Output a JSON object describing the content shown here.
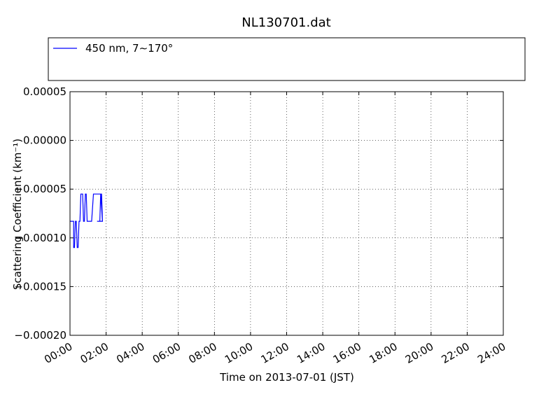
{
  "chart_data": {
    "type": "line",
    "title": "NL130701.dat",
    "xlabel": "Time on 2013-07-01 (JST)",
    "ylabel": "Scattering Coefficient (km⁻¹)",
    "xlim": [
      0,
      24
    ],
    "ylim": [
      -0.0002,
      5e-05
    ],
    "x_unit": "hours",
    "x_ticks": [
      0,
      2,
      4,
      6,
      8,
      10,
      12,
      14,
      16,
      18,
      20,
      22,
      24
    ],
    "x_tick_labels": [
      "00:00",
      "02:00",
      "04:00",
      "06:00",
      "08:00",
      "10:00",
      "12:00",
      "14:00",
      "16:00",
      "18:00",
      "20:00",
      "22:00",
      "24:00"
    ],
    "y_ticks": [
      5e-05,
      0.0,
      -5e-05,
      -0.0001,
      -0.00015,
      -0.0002
    ],
    "y_tick_labels": [
      "0.00005",
      "0.00000",
      "−0.00005",
      "−0.00010",
      "−0.00015",
      "−0.00020"
    ],
    "grid": true,
    "legend_placement": "top, above plot, 3 columns",
    "series": [
      {
        "name": "450 nm, 7∼170°",
        "color": "#0000ff",
        "style": "solid",
        "points": [
          [
            0,
            -8.3e-05
          ],
          [
            0.2,
            -8.3e-05
          ],
          [
            0.2,
            -0.00011
          ],
          [
            0.25,
            -0.00011
          ],
          [
            0.3,
            -8.3e-05
          ],
          [
            0.35,
            -8.3e-05
          ],
          [
            0.4,
            -0.00011
          ],
          [
            0.45,
            -0.00011
          ],
          [
            0.5,
            -8.3e-05
          ],
          [
            0.55,
            -8.3e-05
          ],
          [
            0.6,
            -5.5e-05
          ],
          [
            0.7,
            -5.5e-05
          ],
          [
            0.75,
            -8.3e-05
          ],
          [
            0.8,
            -8.3e-05
          ],
          [
            0.85,
            -5.5e-05
          ],
          [
            0.9,
            -5.5e-05
          ],
          [
            0.95,
            -8.3e-05
          ],
          [
            1.2,
            -8.3e-05
          ],
          [
            1.3,
            -5.5e-05
          ],
          [
            1.7,
            -5.5e-05
          ],
          [
            1.8,
            -8.3e-05
          ],
          [
            1.6,
            -8.3e-05
          ],
          [
            1.65,
            -8.3e-05
          ],
          [
            1.7,
            -5.5e-05
          ],
          [
            1.75,
            -5.5e-05
          ],
          [
            1.8,
            -8.3e-05
          ],
          [
            1.7,
            -8.3e-05
          ],
          [
            1.8,
            -8.3e-05
          ],
          [
            1.7,
            -8.3e-05
          ],
          [
            1.5,
            -8.3e-05
          ],
          [
            1.6,
            -8.3e-05
          ],
          [
            1.7,
            -8.3e-05
          ],
          [
            1.8,
            -8.3e-05
          ],
          [
            1.8,
            -8.3e-05
          ],
          [
            1.8,
            -8.3e-05
          ],
          [
            1.8,
            -8.3e-05
          ],
          [
            1.8,
            -8.3e-05
          ],
          [
            1.8,
            -8.3e-05
          ],
          [
            1.8,
            -8.3e-05
          ],
          [
            1.8,
            -8.3e-05
          ],
          [
            1.8,
            -8.3e-05
          ],
          [
            1.8,
            -8.3e-05
          ],
          [
            1.8,
            -8.3e-05
          ],
          [
            1.8,
            -8.3e-05
          ],
          [
            1.8,
            -8.3e-05
          ],
          [
            1.8,
            -8.3e-05
          ],
          [
            1.8,
            -8.3e-05
          ],
          [
            1.8,
            -8.3e-05
          ],
          [
            1.8,
            -8.3e-05
          ],
          [
            1.8,
            -8.3e-05
          ],
          [
            1.8,
            -8.3e-05
          ],
          [
            1.8,
            -8.3e-05
          ],
          [
            1.8,
            -8.3e-05
          ],
          [
            1.8,
            -8.3e-05
          ],
          [
            1.8,
            -8.3e-05
          ],
          [
            1.8,
            -8.3e-05
          ],
          [
            1.8,
            -8.3e-05
          ],
          [
            1.8,
            -8.3e-05
          ],
          [
            1.8,
            -8.3e-05
          ],
          [
            1.8,
            -8.3e-05
          ],
          [
            1.8,
            -8.3e-05
          ],
          [
            1.8,
            -8.3e-05
          ],
          [
            1.8,
            -8.3e-05
          ],
          [
            1.8,
            -8.3e-05
          ],
          [
            1.8,
            -8.3e-05
          ],
          [
            1.8,
            -8.3e-05
          ],
          [
            1.8,
            -8.3e-05
          ],
          [
            1.8,
            -8.3e-05
          ],
          [
            1.8,
            -8.3e-05
          ],
          [
            1.8,
            -8.3e-05
          ],
          [
            1.8,
            -8.3e-05
          ],
          [
            1.8,
            -8.3e-05
          ],
          [
            1.8,
            -8.3e-05
          ],
          [
            1.8,
            -8.3e-05
          ],
          [
            1.8,
            -8.3e-05
          ],
          [
            1.8,
            -8.3e-05
          ],
          [
            1.8,
            -8.3e-05
          ],
          [
            1.8,
            -8.3e-05
          ],
          [
            1.8,
            -8.3e-05
          ],
          [
            1.8,
            -8.3e-05
          ],
          [
            1.8,
            -8.3e-05
          ],
          [
            1.8,
            -8.3e-05
          ],
          [
            1.8,
            -8.3e-05
          ],
          [
            1.8,
            -8.3e-05
          ],
          [
            1.8,
            -8.3e-05
          ],
          [
            1.8,
            -8.3e-05
          ],
          [
            1.8,
            -8.3e-05
          ],
          [
            1.8,
            -8.3e-05
          ],
          [
            1.8,
            -8.3e-05
          ],
          [
            1.8,
            -8.3e-05
          ],
          [
            1.8,
            -8.3e-05
          ],
          [
            1.8,
            -8.3e-05
          ],
          [
            1.8,
            -8.3e-05
          ],
          [
            1.8,
            -8.3e-05
          ],
          [
            1.8,
            -8.3e-05
          ],
          [
            1.8,
            -8.3e-05
          ],
          [
            1.8,
            -8.3e-05
          ],
          [
            1.7,
            -8.3e-05
          ],
          [
            1.8,
            -8.3e-05
          ],
          [
            1.7,
            -8.3e-05
          ],
          [
            1.65,
            -8.3e-05
          ],
          [
            1.6,
            -8.3e-05
          ],
          [
            1.7,
            -8.3e-05
          ],
          [
            1.7,
            -8.3e-05
          ],
          [
            1.65,
            -8.3e-05
          ],
          [
            1.7,
            -8.3e-05
          ],
          [
            1.7,
            -8.3e-05
          ],
          [
            1.7,
            -8.3e-05
          ],
          [
            1.7,
            -8.3e-05
          ],
          [
            1.7,
            -8.3e-05
          ],
          [
            1.7,
            -8.3e-05
          ],
          [
            1.7,
            -8.3e-05
          ],
          [
            1.7,
            -8.3e-05
          ],
          [
            1.7,
            -8.3e-05
          ],
          [
            1.8,
            -8.3e-05
          ],
          [
            1.7,
            -8.3e-05
          ],
          [
            1.8,
            -8.3e-05
          ],
          [
            1.8,
            -8.3e-05
          ],
          [
            1.8,
            -8.3e-05
          ],
          [
            1.75,
            -8.3e-05
          ],
          [
            1.75,
            -8.3e-05
          ],
          [
            1.75,
            -8.3e-05
          ],
          [
            1.75,
            -8.3e-05
          ],
          [
            1.75,
            -8.3e-05
          ],
          [
            1.75,
            -8.3e-05
          ],
          [
            1.75,
            -8.3e-05
          ],
          [
            1.75,
            -8.3e-05
          ],
          [
            1.75,
            -8.3e-05
          ],
          [
            1.75,
            -8.3e-05
          ],
          [
            1.75,
            -8.3e-05
          ],
          [
            1.75,
            -8.3e-05
          ],
          [
            1.75,
            -8.3e-05
          ],
          [
            1.75,
            -8.3e-05
          ],
          [
            1.75,
            -8.3e-05
          ],
          [
            1.75,
            -8.3e-05
          ],
          [
            1.75,
            -8.3e-05
          ],
          [
            1.75,
            -8.3e-05
          ],
          [
            1.75,
            -8.3e-05
          ],
          [
            1.75,
            -8.3e-05
          ],
          [
            1.75,
            -8.3e-05
          ],
          [
            1.75,
            -8.3e-05
          ],
          [
            1.75,
            -8.3e-05
          ],
          [
            1.75,
            -8.3e-05
          ],
          [
            1.75,
            -8.3e-05
          ],
          [
            1.75,
            -8.3e-05
          ],
          [
            1.75,
            -8.3e-05
          ],
          [
            1.75,
            -8.3e-05
          ],
          [
            1.75,
            -8.3e-05
          ],
          [
            1.75,
            -8.3e-05
          ],
          [
            1.75,
            -8.3e-05
          ],
          [
            1.75,
            -8.3e-05
          ],
          [
            1.75,
            -8.3e-05
          ],
          [
            1.75,
            -8.3e-05
          ],
          [
            1.75,
            -8.3e-05
          ],
          [
            1.75,
            -8.3e-05
          ],
          [
            1.75,
            -8.3e-05
          ],
          [
            1.75,
            -8.3e-05
          ],
          [
            1.75,
            -8.3e-05
          ],
          [
            1.75,
            -8.3e-05
          ],
          [
            1.75,
            -8.3e-05
          ],
          [
            1.75,
            -8.3e-05
          ],
          [
            1.75,
            -8.3e-05
          ],
          [
            1.75,
            -8.3e-05
          ],
          [
            1.75,
            -8.3e-05
          ],
          [
            1.75,
            -8.3e-05
          ],
          [
            1.75,
            -8.3e-05
          ],
          [
            1.75,
            -8.3e-05
          ],
          [
            1.75,
            -8.3e-05
          ],
          [
            1.75,
            -8.3e-05
          ],
          [
            1.75,
            -8.3e-05
          ],
          [
            1.75,
            -8.3e-05
          ],
          [
            1.75,
            -8.3e-05
          ],
          [
            1.75,
            -8.3e-05
          ],
          [
            1.75,
            -8.3e-05
          ],
          [
            1.75,
            -8.3e-05
          ],
          [
            1.75,
            -8.3e-05
          ],
          [
            1.75,
            -8.3e-05
          ],
          [
            1.75,
            -8.3e-05
          ],
          [
            1.75,
            -8.3e-05
          ],
          [
            1.75,
            -8.3e-05
          ],
          [
            1.75,
            -8.3e-05
          ],
          [
            1.75,
            -8.3e-05
          ],
          [
            1.75,
            -8.3e-05
          ],
          [
            1.75,
            -8.3e-05
          ],
          [
            1.75,
            -8.3e-05
          ],
          [
            1.75,
            -8.3e-05
          ],
          [
            1.75,
            -8.3e-05
          ],
          [
            1.75,
            -8.3e-05
          ],
          [
            1.75,
            -8.3e-05
          ],
          [
            1.75,
            -8.3e-05
          ],
          [
            1.75,
            -8.3e-05
          ],
          [
            1.75,
            -8.3e-05
          ],
          [
            1.75,
            -8.3e-05
          ],
          [
            1.75,
            -8.3e-05
          ],
          [
            1.75,
            -8.3e-05
          ],
          [
            1.75,
            -8.3e-05
          ],
          [
            1.75,
            -8.3e-05
          ],
          [
            1.75,
            -8.3e-05
          ],
          [
            1.75,
            -8.3e-05
          ],
          [
            1.75,
            -8.3e-05
          ],
          [
            1.75,
            -8.3e-05
          ],
          [
            1.75,
            -8.3e-05
          ],
          [
            1.75,
            -8.3e-05
          ],
          [
            1.75,
            -8.3e-05
          ],
          [
            1.75,
            -8.3e-05
          ],
          [
            1.75,
            -8.3e-05
          ],
          [
            1.75,
            -8.3e-05
          ],
          [
            1.75,
            -8.3e-05
          ],
          [
            1.75,
            -8.3e-05
          ],
          [
            1.75,
            -8.3e-05
          ],
          [
            1.75,
            -8.3e-05
          ],
          [
            1.75,
            -8.3e-05
          ],
          [
            1.75,
            -8.3e-05
          ],
          [
            1.75,
            -8.3e-05
          ],
          [
            1.75,
            -8.3e-05
          ],
          [
            1.75,
            -8.3e-05
          ],
          [
            1.75,
            -8.3e-05
          ],
          [
            1.75,
            -8.3e-05
          ]
        ]
      }
    ]
  }
}
